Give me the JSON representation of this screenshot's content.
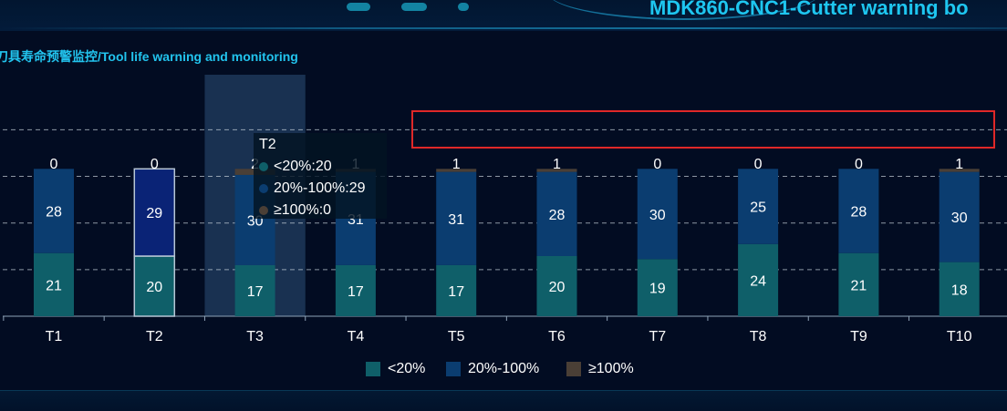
{
  "header": {
    "title": "MDK860-CNC1-Cutter warning bo"
  },
  "section": {
    "title": "刀具寿命预警监控/Tool life warning and monitoring"
  },
  "colors": {
    "low": "#0f5f69",
    "mid": "#0b3d70",
    "high": "#4a3f36",
    "selected_mid": "#0a2376",
    "grid": "#c8d2dc",
    "text": "#ffffff",
    "accent": "#1ec6f0",
    "highlight": "#e02828"
  },
  "chart_data": {
    "type": "bar",
    "stacked": true,
    "categories": [
      "T1",
      "T2",
      "T3",
      "T4",
      "T5",
      "T6",
      "T7",
      "T8",
      "T9",
      "T10"
    ],
    "series": [
      {
        "name": "<20%",
        "values": [
          21,
          20,
          17,
          17,
          17,
          20,
          19,
          24,
          21,
          18
        ]
      },
      {
        "name": "20%-100%",
        "values": [
          28,
          29,
          30,
          31,
          31,
          28,
          30,
          25,
          28,
          30
        ]
      },
      {
        "name": "≥100%",
        "values": [
          0,
          0,
          2,
          1,
          1,
          1,
          0,
          0,
          0,
          1
        ]
      }
    ],
    "ylim": [
      0,
      62
    ],
    "grid": true,
    "legend_position": "bottom",
    "hovered_category": "T3",
    "selected_category": "T2"
  },
  "tooltip": {
    "title": "T2",
    "rows": [
      {
        "text": "<20%:20",
        "color": "#0f5f69"
      },
      {
        "text": "20%-100%:29",
        "color": "#0b3d70"
      },
      {
        "text": "≥100%:0",
        "color": "#4a3f36"
      }
    ]
  },
  "legend": {
    "items": [
      {
        "label": "<20%",
        "color": "#0f5f69"
      },
      {
        "label": "20%-100%",
        "color": "#0b3d70"
      },
      {
        "label": "≥100%",
        "color": "#4a3f36"
      }
    ]
  }
}
